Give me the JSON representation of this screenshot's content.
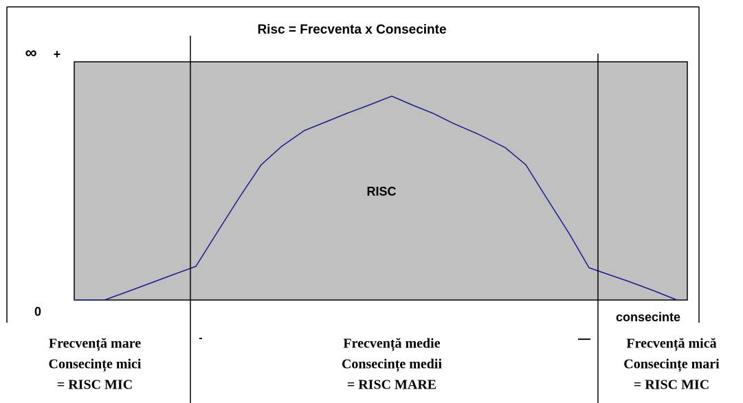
{
  "title": "Risc = Frecventa x Consecinte",
  "axis": {
    "infinity": "∞",
    "plus": "+",
    "zero": "0",
    "x_label": "consecinte"
  },
  "area_label": "RISC",
  "markers": {
    "left": "-",
    "right": "—"
  },
  "zones": [
    {
      "lines": [
        "Frecvență mare",
        "Consecințe mici",
        "= RISC MIC"
      ]
    },
    {
      "lines": [
        "Frecvență medie",
        "Consecințe medii",
        "= RISC MARE"
      ]
    },
    {
      "lines": [
        "Frecvență mică",
        "Consecințe mari",
        "= RISC MIC"
      ]
    }
  ]
}
